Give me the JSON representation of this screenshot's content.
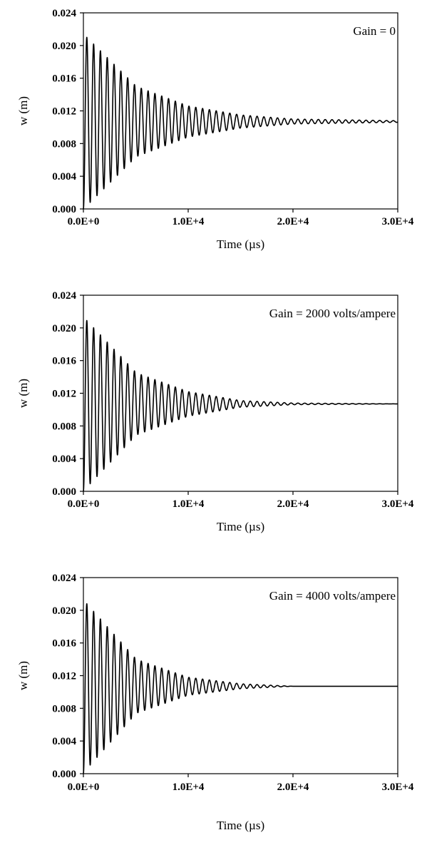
{
  "chart_data": [
    {
      "type": "line",
      "annotation": "Gain = 0",
      "xlabel": "Time (µs)",
      "ylabel": "w (m)",
      "xlim": [
        0,
        30000
      ],
      "ylim": [
        0,
        0.024
      ],
      "x_ticks": [
        "0.0E+0",
        "1.0E+4",
        "2.0E+4",
        "3.0E+4"
      ],
      "y_ticks": [
        "0.000",
        "0.004",
        "0.008",
        "0.012",
        "0.016",
        "0.020",
        "0.024"
      ],
      "grid": false,
      "series": [
        {
          "equilibrium": 0.0107,
          "initial_amplitude": 0.0107,
          "period": 650,
          "peaks": [
            {
              "x": 330,
              "y": 0.021
            },
            {
              "x": 5050,
              "y": 0.015
            },
            {
              "x": 10000,
              "y": 0.0126
            },
            {
              "x": 15000,
              "y": 0.0115
            },
            {
              "x": 20000,
              "y": 0.011
            },
            {
              "x": 30000,
              "y": 0.0108
            }
          ]
        }
      ]
    },
    {
      "type": "line",
      "annotation": "Gain = 2000 volts/ampere",
      "xlabel": "Time (µs)",
      "ylabel": "w (m)",
      "xlim": [
        0,
        30000
      ],
      "ylim": [
        0,
        0.024
      ],
      "x_ticks": [
        "0.0E+0",
        "1.0E+4",
        "2.0E+4",
        "3.0E+4"
      ],
      "y_ticks": [
        "0.000",
        "0.004",
        "0.008",
        "0.012",
        "0.016",
        "0.020",
        "0.024"
      ],
      "grid": false,
      "series": [
        {
          "equilibrium": 0.0107,
          "initial_amplitude": 0.0107,
          "period": 650,
          "peaks": [
            {
              "x": 330,
              "y": 0.0209
            },
            {
              "x": 5050,
              "y": 0.0145
            },
            {
              "x": 10000,
              "y": 0.0122
            },
            {
              "x": 15000,
              "y": 0.0111
            },
            {
              "x": 20000,
              "y": 0.0108
            },
            {
              "x": 30000,
              "y": 0.0107
            }
          ]
        }
      ]
    },
    {
      "type": "line",
      "annotation": "Gain = 4000 volts/ampere",
      "xlabel": "Time (µs)",
      "ylabel": "w (m)",
      "xlim": [
        0,
        30000
      ],
      "ylim": [
        0,
        0.024
      ],
      "x_ticks": [
        "0.0E+0",
        "1.0E+4",
        "2.0E+4",
        "3.0E+4"
      ],
      "y_ticks": [
        "0.000",
        "0.004",
        "0.008",
        "0.012",
        "0.016",
        "0.020",
        "0.024"
      ],
      "grid": false,
      "series": [
        {
          "equilibrium": 0.0107,
          "initial_amplitude": 0.0107,
          "period": 650,
          "peaks": [
            {
              "x": 330,
              "y": 0.0208
            },
            {
              "x": 5050,
              "y": 0.014
            },
            {
              "x": 10000,
              "y": 0.0118
            },
            {
              "x": 15000,
              "y": 0.011
            },
            {
              "x": 20000,
              "y": 0.0107
            },
            {
              "x": 30000,
              "y": 0.0107
            }
          ]
        }
      ]
    }
  ]
}
